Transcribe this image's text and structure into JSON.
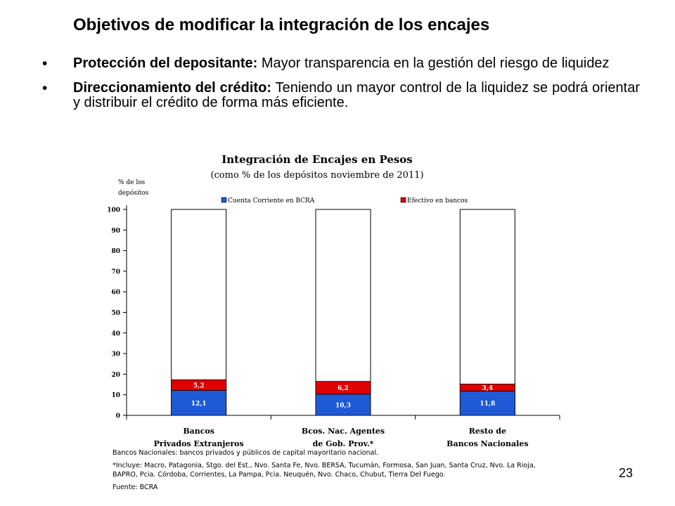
{
  "slide": {
    "title": "Objetivos de modificar la integración de los encajes",
    "bullets": [
      {
        "lead": "Protección del depositante:",
        "text": " Mayor transparencia en la gestión del riesgo de liquidez"
      },
      {
        "lead": "Direccionamiento del crédito:",
        "text": " Teniendo un mayor control de la liquidez se podrá orientar y distribuir el crédito de forma más eficiente."
      }
    ],
    "bullet_char": "•",
    "page_number": "23"
  },
  "chart_data": {
    "type": "bar",
    "stacked": true,
    "title": "Integración de Encajes en Pesos",
    "subtitle": "(como % de los depósitos noviembre de 2011)",
    "ylabel_lines": [
      "% de los",
      "depósitos"
    ],
    "ylim": [
      0,
      100
    ],
    "yticks": [
      "0",
      "10",
      "20",
      "30",
      "40",
      "50",
      "60",
      "70",
      "80",
      "90",
      "100"
    ],
    "categories": [
      [
        "Bancos",
        "Privados Extranjeros"
      ],
      [
        "Bcos. Nac. Agentes",
        "de Gob. Prov.*"
      ],
      [
        "Resto de",
        "Bancos Nacionales"
      ]
    ],
    "series": [
      {
        "name": "Cuenta Corriente en BCRA",
        "color": "#1f5ad6",
        "values": [
          12.1,
          10.3,
          11.8
        ],
        "labels": [
          "12,1",
          "10,3",
          "11,8"
        ]
      },
      {
        "name": "Efectivo en bancos",
        "color": "#e00000",
        "values": [
          5.2,
          6.2,
          3.4
        ],
        "labels": [
          "5,2",
          "6,2",
          "3,4"
        ]
      }
    ],
    "bar_total": 100,
    "legend_position": "top"
  },
  "notes": [
    "Bancos Nacionales: bancos privados y públicos de capital mayoritario nacional.",
    "*Incluye: Macro, Patagonia, Stgo. del Est., Nvo. Santa Fe, Nvo. BERSA, Tucumán, Formosa, San Juan, Santa Cruz, Nvo. La Rioja, BAPRO, Pcia. Córdoba, Corrientes, La Pampa, Pcia. Neuquén, Nvo. Chaco, Chubut, Tierra Del Fuego.",
    "Fuente: BCRA"
  ]
}
